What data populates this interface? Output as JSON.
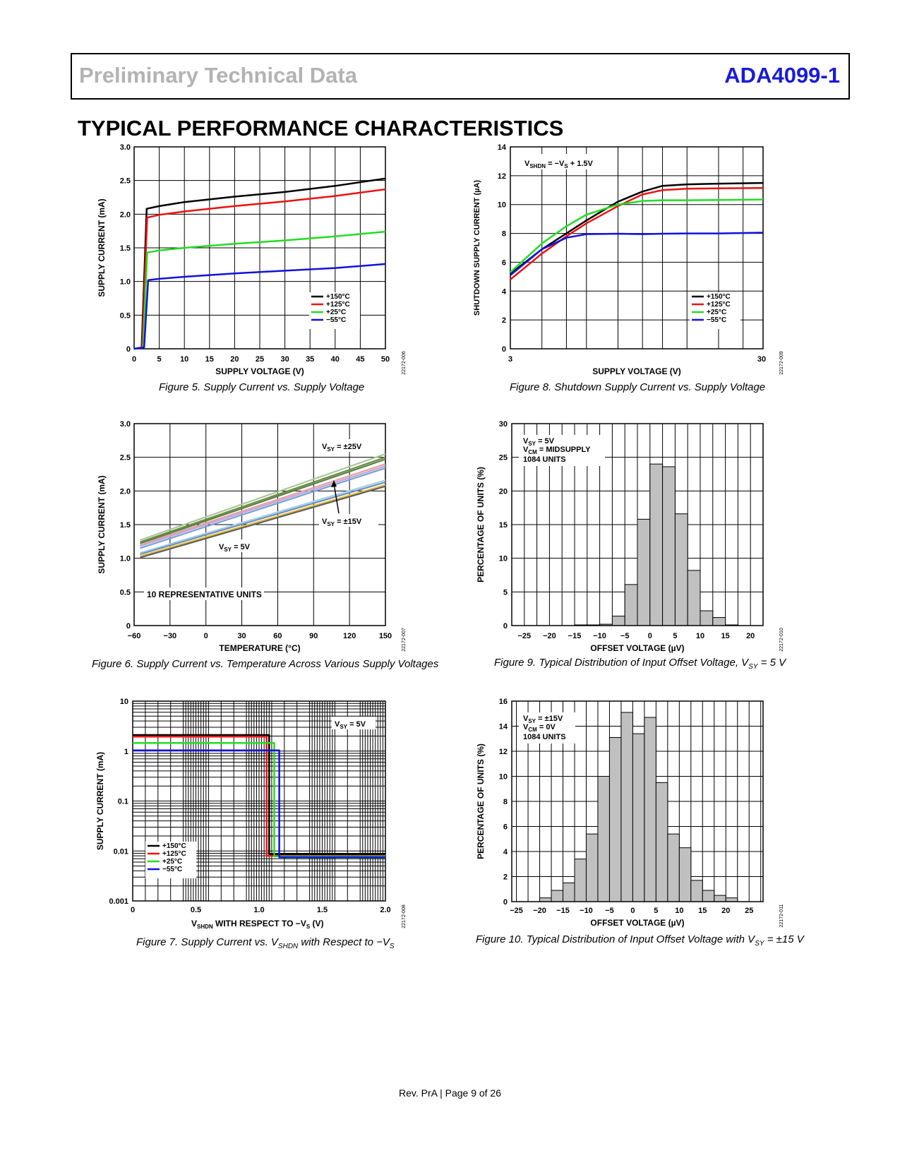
{
  "header": {
    "left": "Preliminary Technical Data",
    "right": "ADA4099-1"
  },
  "section_title": "TYPICAL PERFORMANCE CHARACTERISTICS",
  "footer": "Rev. PrA | Page 9 of 26",
  "figures": {
    "fig5": {
      "caption": "Figure 5. Supply Current vs. Supply Voltage",
      "id": "22172-006"
    },
    "fig6": {
      "caption": "Figure 6. Supply Current vs. Temperature Across Various Supply Voltages",
      "id": "22172-007"
    },
    "fig7": {
      "caption_pre": "Figure 7. Supply Current vs. V",
      "caption_sub": "SHDN",
      "caption_post": " with Respect to −V",
      "caption_sub2": "S",
      "id": "22172-008"
    },
    "fig8": {
      "caption": "Figure 8. Shutdown Supply Current vs. Supply Voltage",
      "id": "22172-009"
    },
    "fig9": {
      "caption_pre": "Figure 9. Typical Distribution of Input Offset Voltage, V",
      "caption_sub": "SY",
      "caption_post": " = 5 V",
      "id": "22172-010"
    },
    "fig10": {
      "caption_pre": "Figure 10. Typical Distribution of Input Offset Voltage with V",
      "caption_sub": "SY",
      "caption_post": " = ±15 V",
      "id": "22172-011"
    }
  },
  "colors": {
    "t150": "#000000",
    "t125": "#ee1111",
    "t25": "#22dd22",
    "tm55": "#1111dd",
    "bar": "#c0c0c0",
    "brand": "#1a1adb"
  },
  "chart_data": [
    {
      "id": "fig5",
      "type": "line",
      "xlabel": "SUPPLY VOLTAGE (V)",
      "ylabel": "SUPPLY CURRENT (mA)",
      "xlim": [
        0,
        50
      ],
      "ylim": [
        0,
        3
      ],
      "xticks": [
        0,
        5,
        10,
        15,
        20,
        25,
        30,
        35,
        40,
        45,
        50
      ],
      "yticks": [
        0,
        0.5,
        1.0,
        1.5,
        2.0,
        2.5,
        3.0
      ],
      "ytick_labels": [
        "0",
        "0.5",
        "1.0",
        "1.5",
        "2.0",
        "2.5",
        "3.0"
      ],
      "legend": "bottom-right",
      "series": [
        {
          "name": "+150°C",
          "color": "#000000",
          "points": [
            [
              0,
              0
            ],
            [
              1.5,
              0.02
            ],
            [
              2.5,
              2.08
            ],
            [
              5,
              2.12
            ],
            [
              10,
              2.18
            ],
            [
              20,
              2.26
            ],
            [
              30,
              2.33
            ],
            [
              40,
              2.42
            ],
            [
              50,
              2.53
            ]
          ]
        },
        {
          "name": "+125°C",
          "color": "#ee1111",
          "points": [
            [
              0,
              0
            ],
            [
              1.6,
              0.02
            ],
            [
              2.6,
              1.95
            ],
            [
              5,
              1.99
            ],
            [
              10,
              2.04
            ],
            [
              20,
              2.12
            ],
            [
              30,
              2.19
            ],
            [
              40,
              2.27
            ],
            [
              50,
              2.37
            ]
          ]
        },
        {
          "name": "+25°C",
          "color": "#22dd22",
          "points": [
            [
              0,
              0
            ],
            [
              1.8,
              0.02
            ],
            [
              2.6,
              1.43
            ],
            [
              5,
              1.46
            ],
            [
              10,
              1.5
            ],
            [
              20,
              1.56
            ],
            [
              30,
              1.61
            ],
            [
              40,
              1.67
            ],
            [
              50,
              1.74
            ]
          ]
        },
        {
          "name": "−55°C",
          "color": "#1111dd",
          "points": [
            [
              0,
              0
            ],
            [
              2.0,
              0.02
            ],
            [
              2.8,
              1.02
            ],
            [
              5,
              1.04
            ],
            [
              10,
              1.07
            ],
            [
              20,
              1.12
            ],
            [
              30,
              1.16
            ],
            [
              40,
              1.2
            ],
            [
              50,
              1.26
            ]
          ]
        }
      ]
    },
    {
      "id": "fig6",
      "type": "line",
      "xlabel": "TEMPERATURE (°C)",
      "ylabel": "SUPPLY CURRENT (mA)",
      "xlim": [
        -60,
        150
      ],
      "ylim": [
        0,
        3
      ],
      "xticks": [
        -60,
        -30,
        0,
        30,
        60,
        90,
        120,
        150
      ],
      "xtick_labels": [
        "−60",
        "−30",
        "0",
        "30",
        "60",
        "90",
        "120",
        "150"
      ],
      "yticks": [
        0,
        0.5,
        1.0,
        1.5,
        2.0,
        2.5,
        3.0
      ],
      "ytick_labels": [
        "0",
        "0.5",
        "1.0",
        "1.5",
        "2.0",
        "2.5",
        "3.0"
      ],
      "annotations": [
        "V_SY = ±25V",
        "V_SY = ±15V",
        "V_SY = 5V",
        "10 REPRESENTATIVE UNITS"
      ],
      "series": [
        {
          "name": "±25V unit A",
          "color": "#a8c8a0",
          "points": [
            [
              -55,
              1.27
            ],
            [
              150,
              2.55
            ]
          ]
        },
        {
          "name": "±25V unit B",
          "color": "#6b8e3a",
          "points": [
            [
              -55,
              1.24
            ],
            [
              150,
              2.5
            ]
          ]
        },
        {
          "name": "±25V unit C",
          "color": "#5f7f4f",
          "points": [
            [
              -55,
              1.22
            ],
            [
              150,
              2.47
            ]
          ]
        },
        {
          "name": "±15V unit A",
          "color": "#e8a0a0",
          "points": [
            [
              -55,
              1.2
            ],
            [
              150,
              2.4
            ]
          ]
        },
        {
          "name": "±15V unit B",
          "color": "#c0a8d8",
          "points": [
            [
              -55,
              1.18
            ],
            [
              150,
              2.37
            ]
          ]
        },
        {
          "name": "±15V unit C",
          "color": "#7aa0d8",
          "points": [
            [
              -55,
              1.15
            ],
            [
              150,
              2.34
            ]
          ]
        },
        {
          "name": "5V unit A",
          "color": "#a8d0e8",
          "points": [
            [
              -55,
              1.08
            ],
            [
              150,
              2.16
            ]
          ]
        },
        {
          "name": "5V unit B",
          "color": "#7090c0",
          "points": [
            [
              -55,
              1.06
            ],
            [
              150,
              2.13
            ]
          ]
        },
        {
          "name": "5V unit C",
          "color": "#e8c030",
          "points": [
            [
              -55,
              1.03
            ],
            [
              150,
              2.09
            ]
          ]
        },
        {
          "name": "5V unit D",
          "color": "#606060",
          "points": [
            [
              -55,
              1.01
            ],
            [
              150,
              2.07
            ]
          ]
        }
      ]
    },
    {
      "id": "fig7",
      "type": "line",
      "xlabel": "V_SHDN WITH RESPECT TO −V_S (V)",
      "ylabel": "SUPPLY CURRENT (mA)",
      "xlim": [
        0,
        2.0
      ],
      "ylim_log": [
        0.001,
        10
      ],
      "xticks": [
        0,
        0.5,
        1.0,
        1.5,
        2.0
      ],
      "xtick_labels": [
        "0",
        "0.5",
        "1.0",
        "1.5",
        "2.0"
      ],
      "ytick_labels": [
        "0.001",
        "0.01",
        "0.1",
        "1",
        "10"
      ],
      "annotation": "V_SY = 5V",
      "legend": "bottom-left",
      "series": [
        {
          "name": "+150°C",
          "color": "#000000",
          "points": [
            [
              0,
              2.1
            ],
            [
              1.08,
              2.1
            ],
            [
              1.08,
              0.0085
            ],
            [
              2.0,
              0.0085
            ]
          ]
        },
        {
          "name": "+125°C",
          "color": "#ee1111",
          "points": [
            [
              0,
              1.95
            ],
            [
              1.06,
              1.95
            ],
            [
              1.06,
              0.008
            ],
            [
              2.0,
              0.008
            ]
          ]
        },
        {
          "name": "+25°C",
          "color": "#22dd22",
          "points": [
            [
              0,
              1.45
            ],
            [
              1.12,
              1.45
            ],
            [
              1.12,
              0.0078
            ],
            [
              2.0,
              0.0078
            ]
          ]
        },
        {
          "name": "−55°C",
          "color": "#1111dd",
          "points": [
            [
              0,
              1.03
            ],
            [
              1.16,
              1.03
            ],
            [
              1.16,
              0.0075
            ],
            [
              2.0,
              0.0075
            ]
          ]
        }
      ]
    },
    {
      "id": "fig8",
      "type": "line",
      "xlabel": "SUPPLY VOLTAGE (V)",
      "ylabel": "SHUTDOWN SUPPLY CURRENT (µA)",
      "xscale": "log",
      "xlim": [
        3,
        30
      ],
      "ylim": [
        0,
        14
      ],
      "xtick_labels": [
        "3",
        "30"
      ],
      "yticks": [
        0,
        2,
        4,
        6,
        8,
        10,
        12,
        14
      ],
      "annotation": "V_SHDN = −V_S + 1.5V",
      "legend": "bottom-right",
      "series": [
        {
          "name": "+150°C",
          "color": "#000000",
          "points": [
            [
              3,
              5.2
            ],
            [
              4,
              6.9
            ],
            [
              5,
              8.0
            ],
            [
              6,
              8.9
            ],
            [
              8,
              10.2
            ],
            [
              10,
              10.9
            ],
            [
              12,
              11.3
            ],
            [
              15,
              11.4
            ],
            [
              20,
              11.45
            ],
            [
              30,
              11.5
            ]
          ]
        },
        {
          "name": "+125°C",
          "color": "#ee1111",
          "points": [
            [
              3,
              4.8
            ],
            [
              4,
              6.6
            ],
            [
              5,
              7.8
            ],
            [
              6,
              8.7
            ],
            [
              8,
              9.9
            ],
            [
              10,
              10.7
            ],
            [
              12,
              11.0
            ],
            [
              15,
              11.1
            ],
            [
              20,
              11.12
            ],
            [
              30,
              11.15
            ]
          ]
        },
        {
          "name": "+25°C",
          "color": "#22dd22",
          "points": [
            [
              3,
              5.3
            ],
            [
              4,
              7.3
            ],
            [
              5,
              8.5
            ],
            [
              6,
              9.3
            ],
            [
              8,
              10.0
            ],
            [
              10,
              10.25
            ],
            [
              12,
              10.3
            ],
            [
              15,
              10.3
            ],
            [
              20,
              10.32
            ],
            [
              30,
              10.35
            ]
          ]
        },
        {
          "name": "−55°C",
          "color": "#1111dd",
          "points": [
            [
              3,
              5.1
            ],
            [
              4,
              6.9
            ],
            [
              5,
              7.7
            ],
            [
              6,
              7.95
            ],
            [
              8,
              7.98
            ],
            [
              10,
              7.95
            ],
            [
              12,
              7.98
            ],
            [
              15,
              8.0
            ],
            [
              20,
              8.0
            ],
            [
              30,
              8.05
            ]
          ]
        }
      ]
    },
    {
      "id": "fig9",
      "type": "bar",
      "xlabel": "OFFSET VOLTAGE (µV)",
      "ylabel": "PERCENTAGE OF UNITS (%)",
      "xlim": [
        -27.5,
        22.5
      ],
      "ylim": [
        0,
        30
      ],
      "xticks": [
        -25,
        -20,
        -15,
        -10,
        -5,
        0,
        5,
        10,
        15,
        20
      ],
      "xtick_labels": [
        "−25",
        "−20",
        "−15",
        "−10",
        "−5",
        "0",
        "5",
        "10",
        "15",
        "20"
      ],
      "yticks": [
        0,
        5,
        10,
        15,
        20,
        25,
        30
      ],
      "annotations": [
        "V_SY = 5V",
        "V_CM = MIDSUPPLY",
        "1084 UNITS"
      ],
      "bin_width": 2.5,
      "bin_starts": [
        -15,
        -12.5,
        -10,
        -7.5,
        -5,
        -2.5,
        0,
        2.5,
        5,
        7.5,
        10,
        12.5,
        15
      ],
      "values": [
        0.1,
        0.1,
        0.2,
        1.4,
        6.1,
        15.8,
        24.0,
        23.6,
        16.6,
        8.2,
        2.2,
        1.2,
        0.1
      ]
    },
    {
      "id": "fig10",
      "type": "bar",
      "xlabel": "OFFSET VOLTAGE (µV)",
      "ylabel": "PERCENTAGE OF UNITS (%)",
      "xlim": [
        -26,
        28
      ],
      "ylim": [
        0,
        16
      ],
      "xticks": [
        -25,
        -20,
        -15,
        -10,
        -5,
        0,
        5,
        10,
        15,
        20,
        25
      ],
      "xtick_labels": [
        "−25",
        "−20",
        "−15",
        "−10",
        "−5",
        "0",
        "5",
        "10",
        "15",
        "20",
        "25"
      ],
      "yticks": [
        0,
        2,
        4,
        6,
        8,
        10,
        12,
        14,
        16
      ],
      "annotations": [
        "V_SY = ±15V",
        "V_CM = 0V",
        "1084 UNITS"
      ],
      "bin_width": 2.5,
      "bin_starts": [
        -20,
        -17.5,
        -15,
        -12.5,
        -10,
        -7.5,
        -5,
        -2.5,
        0,
        2.5,
        5,
        7.5,
        10,
        12.5,
        15,
        17.5,
        20
      ],
      "values": [
        0.3,
        0.9,
        1.5,
        3.4,
        5.4,
        10.0,
        13.1,
        15.1,
        13.4,
        14.7,
        9.5,
        5.4,
        4.3,
        1.7,
        0.9,
        0.5,
        0.3
      ]
    }
  ]
}
